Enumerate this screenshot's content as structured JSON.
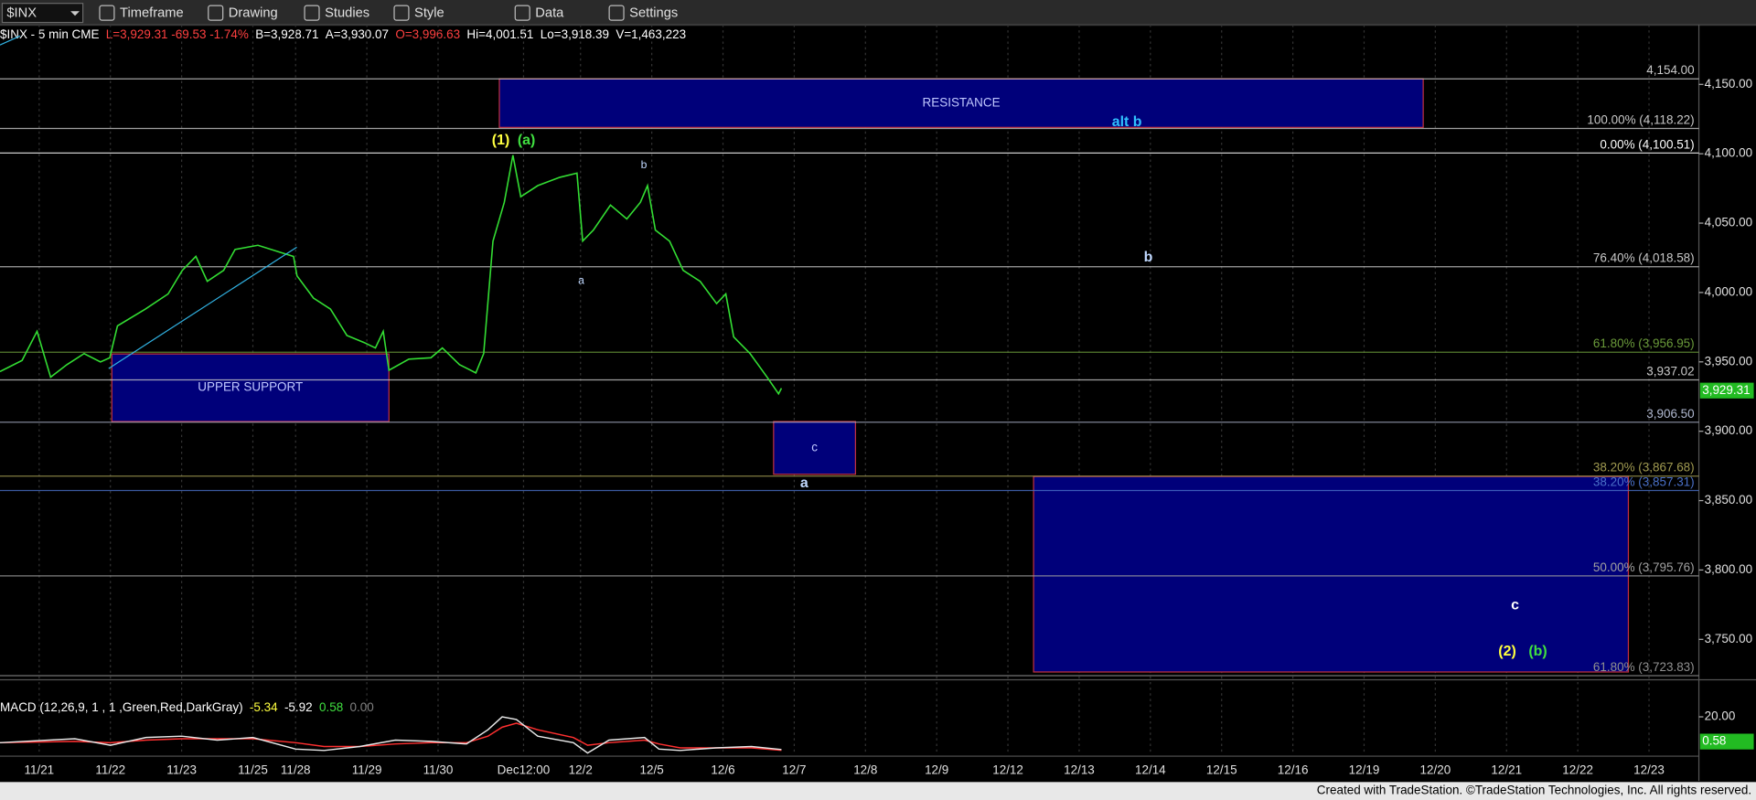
{
  "toolbar": {
    "symbol": "$INX",
    "items": [
      "Timeframe",
      "Drawing",
      "Studies",
      "Style",
      "Data",
      "Settings"
    ]
  },
  "footer": "Created with TradeStation. ©TradeStation Technologies, Inc. All rights reserved.",
  "chart_data": {
    "type": "line",
    "color": "#33dd33",
    "header": [
      {
        "text": "$INX - 5 min  CME",
        "color": "#ffffff"
      },
      {
        "text": "L=3,929.31 -69.53 -1.74%",
        "color": "#ff4040"
      },
      {
        "text": "B=3,928.71",
        "color": "#ffffff"
      },
      {
        "text": "A=3,930.07",
        "color": "#ffffff"
      },
      {
        "text": "O=3,996.63",
        "color": "#ff4040"
      },
      {
        "text": "Hi=4,001.51",
        "color": "#ffffff"
      },
      {
        "text": "Lo=3,918.39",
        "color": "#ffffff"
      },
      {
        "text": "V=1,463,223",
        "color": "#ffffff"
      }
    ],
    "xlim": [
      -0.55,
      23.3
    ],
    "ylim": [
      3722.5,
      4193
    ],
    "xticks": [
      {
        "value": 0,
        "label": "11/21"
      },
      {
        "value": 1,
        "label": "11/22"
      },
      {
        "value": 2,
        "label": "11/23"
      },
      {
        "value": 3,
        "label": "11/25"
      },
      {
        "value": 3.6,
        "label": "11/28"
      },
      {
        "value": 4.6,
        "label": "11/29"
      },
      {
        "value": 5.6,
        "label": "11/30"
      },
      {
        "value": 6.8,
        "label": "Dec12:00"
      },
      {
        "value": 7.6,
        "label": "12/2"
      },
      {
        "value": 8.6,
        "label": "12/5"
      },
      {
        "value": 9.6,
        "label": "12/6"
      },
      {
        "value": 10.6,
        "label": "12/7"
      },
      {
        "value": 11.6,
        "label": "12/8"
      },
      {
        "value": 12.6,
        "label": "12/9"
      },
      {
        "value": 13.6,
        "label": "12/12"
      },
      {
        "value": 14.6,
        "label": "12/13"
      },
      {
        "value": 15.6,
        "label": "12/14"
      },
      {
        "value": 16.6,
        "label": "12/15"
      },
      {
        "value": 17.6,
        "label": "12/16"
      },
      {
        "value": 18.6,
        "label": "12/19"
      },
      {
        "value": 19.6,
        "label": "12/20"
      },
      {
        "value": 20.6,
        "label": "12/21"
      },
      {
        "value": 21.6,
        "label": "12/22"
      },
      {
        "value": 22.6,
        "label": "12/23"
      }
    ],
    "yticks": [
      {
        "value": 3750,
        "label": "3,750.00"
      },
      {
        "value": 3800,
        "label": "3,800.00"
      },
      {
        "value": 3850,
        "label": "3,850.00"
      },
      {
        "value": 3900,
        "label": "3,900.00"
      },
      {
        "value": 3950,
        "label": "3,950.00"
      },
      {
        "value": 4000,
        "label": "4,000.00"
      },
      {
        "value": 4050,
        "label": "4,050.00"
      },
      {
        "value": 4100,
        "label": "4,100.00"
      },
      {
        "value": 4150,
        "label": "4,150.00"
      }
    ],
    "grid": true,
    "x": [
      -0.55,
      -0.24,
      -0.03,
      0.16,
      0.39,
      0.63,
      0.86,
      0.99,
      1.1,
      1.49,
      1.81,
      2.01,
      2.2,
      2.36,
      2.59,
      2.75,
      3.07,
      3.38,
      3.57,
      3.62,
      3.85,
      4.09,
      4.32,
      4.56,
      4.72,
      4.83,
      4.91,
      5.19,
      5.5,
      5.66,
      5.9,
      6.13,
      6.24,
      6.37,
      6.53,
      6.65,
      6.76,
      7.0,
      7.31,
      7.55,
      7.63,
      7.78,
      8.02,
      8.25,
      8.44,
      8.54,
      8.65,
      8.85,
      9.04,
      9.28,
      9.51,
      9.64,
      9.75,
      9.98,
      10.22,
      10.38,
      10.42
    ],
    "values": [
      3943,
      3951,
      3972,
      3939,
      3948,
      3956,
      3950,
      3953,
      3976,
      3988,
      3999,
      4016,
      4026,
      4008,
      4016,
      4031,
      4034,
      4029,
      4026,
      4012,
      3996,
      3988,
      3969,
      3964,
      3960,
      3972,
      3944,
      3952,
      3953,
      3960,
      3948,
      3942,
      3956,
      4037,
      4065,
      4099,
      4069,
      4077,
      4083,
      4086,
      4037,
      4045,
      4063,
      4053,
      4065,
      4077,
      4045,
      4037,
      4016,
      4008,
      3992,
      3999,
      3968,
      3956,
      3939,
      3927,
      3931
    ],
    "last_price": {
      "value": 3929.31,
      "label": "3,929.31"
    },
    "levels": [
      {
        "label": "4,154.00",
        "value": 4154,
        "color": "#c8c8c8"
      },
      {
        "label": "100.00% (4,118.22)",
        "value": 4118.22,
        "color": "#c8c8c8"
      },
      {
        "label": "0.00% (4,100.51)",
        "value": 4100.51,
        "color": "#ffffff"
      },
      {
        "label": "76.40% (4,018.58)",
        "value": 4018.58,
        "color": "#c8c8c8"
      },
      {
        "label": "61.80% (3,956.95)",
        "value": 3956.95,
        "color": "#6a9a3a"
      },
      {
        "label": "3,937.02",
        "value": 3937.02,
        "color": "#c8c8c8"
      },
      {
        "label": "3,906.50",
        "value": 3906.5,
        "color": "#b0b8d0"
      },
      {
        "label": "38.20% (3,867.68)",
        "value": 3867.68,
        "color": "#a09a50"
      },
      {
        "label": "38.20% (3,857.31)",
        "value": 3857.31,
        "color": "#4a70c8"
      },
      {
        "label": "50.00% (3,795.76)",
        "value": 3795.76,
        "color": "#a0a0a0"
      },
      {
        "label": "61.80% (3,723.83)",
        "value": 3723.83,
        "color": "#909090"
      }
    ],
    "zones": [
      {
        "label": "RESISTANCE",
        "x": [
          6.46,
          19.43
        ],
        "y": [
          4119,
          4154
        ]
      },
      {
        "label": "UPPER SUPPORT",
        "x": [
          1.02,
          4.91
        ],
        "y": [
          3907,
          3955.7
        ]
      },
      {
        "label": "c",
        "x": [
          10.31,
          11.46
        ],
        "y": [
          3869,
          3907
        ]
      },
      {
        "label": "",
        "x": [
          13.96,
          22.31
        ],
        "y": [
          3726.5,
          3867.4
        ]
      }
    ],
    "annotations": [
      {
        "text": "(1)",
        "x": 6.48,
        "y": 4109.5,
        "color": "#ffff40"
      },
      {
        "text": "(a)",
        "x": 6.84,
        "y": 4109.5,
        "color": "#40e040"
      },
      {
        "text": "b",
        "x": 8.49,
        "y": 4091.7,
        "color": "#c0d8ff"
      },
      {
        "text": "a",
        "x": 7.61,
        "y": 4008.3,
        "color": "#c0d8ff"
      },
      {
        "text": "alt b",
        "x": 15.27,
        "y": 4122.5,
        "color": "#30c0ff"
      },
      {
        "text": "b",
        "x": 15.57,
        "y": 4025,
        "color": "#c0d8ff"
      },
      {
        "text": "a",
        "x": 10.74,
        "y": 3862.5,
        "color": "#c0d8ff"
      },
      {
        "text": "c",
        "x": 20.72,
        "y": 3774.3,
        "color": "#ffffff"
      },
      {
        "text": "(2)",
        "x": 20.61,
        "y": 3741,
        "color": "#ffff40"
      },
      {
        "text": "(b)",
        "x": 21.04,
        "y": 3741,
        "color": "#40e040"
      }
    ],
    "macd": {
      "legend": [
        {
          "text": "MACD (12,26,9, 1 , 1 ,Green,Red,DarkGray)",
          "color": "#ffffff"
        },
        {
          "text": "-5.34",
          "color": "#ffff40"
        },
        {
          "text": "-5.92",
          "color": "#ffffff"
        },
        {
          "text": "0.58",
          "color": "#40e040"
        },
        {
          "text": "0.00",
          "color": "#808080"
        }
      ],
      "ylim": [
        -9.6,
        33.9
      ],
      "yticks": [
        {
          "value": 20,
          "label": "20.00"
        }
      ],
      "last_tag": "0.58",
      "x": [
        -0.55,
        0.5,
        1.0,
        1.5,
        2.0,
        2.5,
        3.0,
        3.6,
        4.0,
        4.5,
        5.0,
        5.5,
        6.0,
        6.3,
        6.5,
        6.7,
        7.0,
        7.5,
        7.7,
        8.0,
        8.5,
        8.7,
        9.0,
        9.5,
        10.0,
        10.42
      ],
      "macd_values": [
        0,
        3,
        -2,
        4,
        5,
        2,
        4,
        -5,
        -6,
        -3,
        2,
        1,
        -1,
        10,
        20,
        18,
        5,
        0,
        -8,
        2,
        4,
        -5,
        -6,
        -4,
        -3,
        -5.34
      ],
      "signal_values": [
        0,
        1,
        0,
        2,
        3,
        3,
        3,
        0,
        -3,
        -3,
        -1,
        0,
        0,
        5,
        12,
        15,
        10,
        4,
        -2,
        0,
        2,
        -1,
        -4,
        -4,
        -4,
        -5.92
      ]
    }
  }
}
